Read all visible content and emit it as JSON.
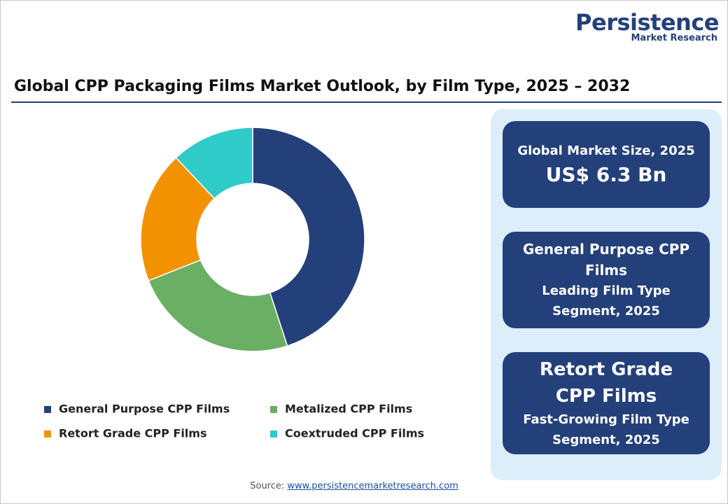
{
  "logo": {
    "name": "Persistence",
    "tagline": "Market Research"
  },
  "chart_data": {
    "type": "donut",
    "title": "Global CPP Packaging Films Market Outlook, by Film Type, 2025 – 2032",
    "categories": [
      "General Purpose CPP Films",
      "Metalized CPP Films",
      "Retort Grade CPP Films",
      "Coextruded CPP Films"
    ],
    "values": [
      45,
      24,
      19,
      12
    ],
    "colors": [
      "#24407a",
      "#6aaf64",
      "#f39200",
      "#2ecbc9"
    ]
  },
  "panels": [
    {
      "heading": "Global Market Size, 2025",
      "value": "US$ 6.3 Bn"
    },
    {
      "heading": "General Purpose CPP Films",
      "subtitle": "Leading Film Type Segment, 2025"
    },
    {
      "heading": "Retort Grade CPP Films",
      "subtitle": "Fast-Growing Film Type Segment, 2025"
    }
  ],
  "source": {
    "label": "Source:",
    "link": "www.persistencemarketresearch.com"
  }
}
